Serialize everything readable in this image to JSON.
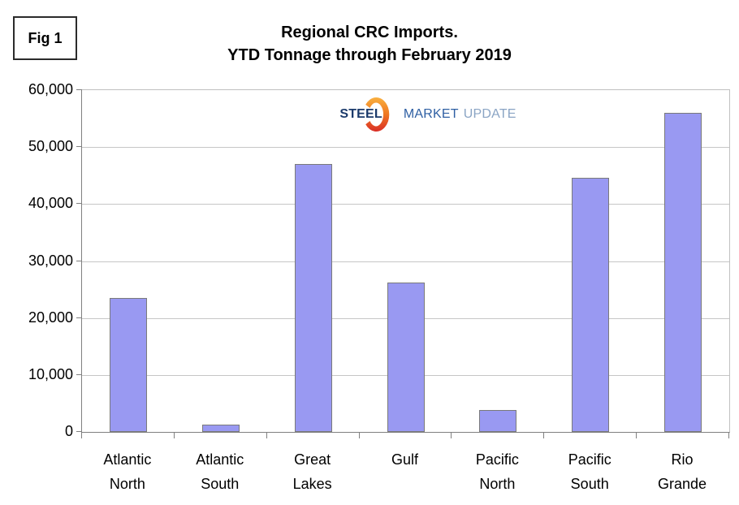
{
  "figure_label": "Fig 1",
  "title": {
    "line1": "Regional CRC Imports.",
    "line2": "YTD Tonnage through February 2019"
  },
  "logo": {
    "part1": "STEEL",
    "part2": "MARKET",
    "part3": "UPDATE",
    "part1_color": "#1b3a6b",
    "part2_color": "#2e5fa3",
    "part3_color": "#8aa4c4",
    "crescent_top_color": "#f9b03f",
    "crescent_mid_color": "#ef7622",
    "crescent_bottom_color": "#d92e27"
  },
  "chart_data": {
    "type": "bar",
    "title": "Regional CRC Imports. YTD Tonnage through February 2019",
    "categories": [
      "Atlantic North",
      "Atlantic South",
      "Great Lakes",
      "Gulf",
      "Pacific North",
      "Pacific South",
      "Rio Grande"
    ],
    "values": [
      23500,
      1300,
      47000,
      26200,
      3900,
      44600,
      56000
    ],
    "xlabel": "",
    "ylabel": "",
    "ylim": [
      0,
      60000
    ],
    "ytick_step": 10000,
    "ytick_labels": [
      "0",
      "10,000",
      "20,000",
      "30,000",
      "40,000",
      "50,000",
      "60,000"
    ],
    "grid": true,
    "legend": false,
    "bar_fill": "#9999f2",
    "bar_border": "#7a7a7a",
    "gridline_color": "#c6c6c6",
    "axis_color": "#808080"
  }
}
